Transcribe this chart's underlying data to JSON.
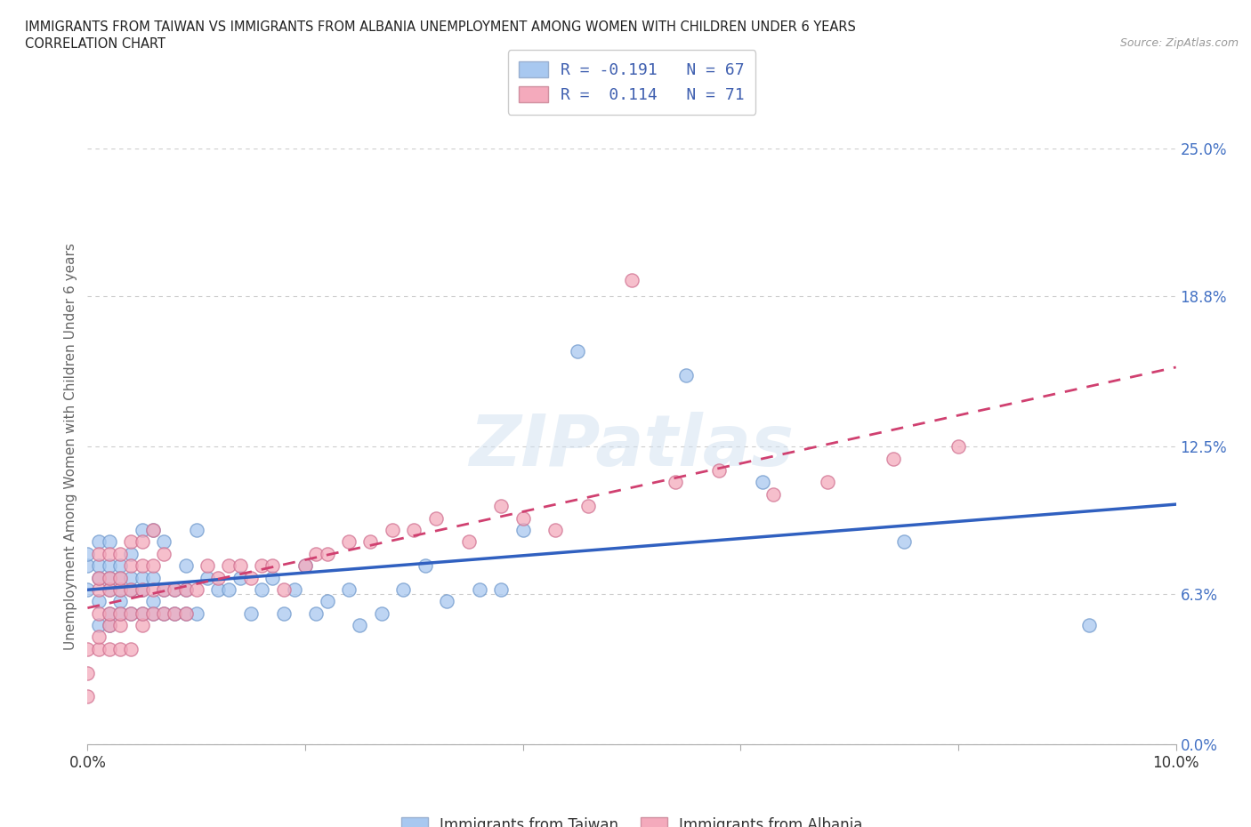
{
  "title_line1": "IMMIGRANTS FROM TAIWAN VS IMMIGRANTS FROM ALBANIA UNEMPLOYMENT AMONG WOMEN WITH CHILDREN UNDER 6 YEARS",
  "title_line2": "CORRELATION CHART",
  "source_text": "Source: ZipAtlas.com",
  "ylabel": "Unemployment Among Women with Children Under 6 years",
  "xlim": [
    0.0,
    0.1
  ],
  "ylim": [
    0.0,
    0.25
  ],
  "x_ticks": [
    0.0,
    0.02,
    0.04,
    0.06,
    0.08,
    0.1
  ],
  "x_tick_labels": [
    "0.0%",
    "",
    "",
    "",
    "",
    "10.0%"
  ],
  "y_tick_labels_right": [
    "0.0%",
    "6.3%",
    "12.5%",
    "18.8%",
    "25.0%"
  ],
  "y_ticks_right": [
    0.0,
    0.063,
    0.125,
    0.188,
    0.25
  ],
  "taiwan_color": "#a8c8f0",
  "albania_color": "#f4aabc",
  "taiwan_line_color": "#3060c0",
  "albania_line_color": "#d04070",
  "R_taiwan": -0.191,
  "N_taiwan": 67,
  "R_albania": 0.114,
  "N_albania": 71,
  "taiwan_x": [
    0.0,
    0.0,
    0.0,
    0.001,
    0.001,
    0.001,
    0.001,
    0.001,
    0.002,
    0.002,
    0.002,
    0.002,
    0.002,
    0.002,
    0.003,
    0.003,
    0.003,
    0.003,
    0.003,
    0.004,
    0.004,
    0.004,
    0.004,
    0.005,
    0.005,
    0.005,
    0.005,
    0.006,
    0.006,
    0.006,
    0.006,
    0.007,
    0.007,
    0.007,
    0.008,
    0.008,
    0.009,
    0.009,
    0.009,
    0.01,
    0.01,
    0.011,
    0.012,
    0.013,
    0.014,
    0.015,
    0.016,
    0.017,
    0.018,
    0.019,
    0.02,
    0.021,
    0.022,
    0.024,
    0.025,
    0.027,
    0.029,
    0.031,
    0.033,
    0.036,
    0.038,
    0.04,
    0.045,
    0.055,
    0.062,
    0.075,
    0.092
  ],
  "taiwan_y": [
    0.065,
    0.075,
    0.08,
    0.05,
    0.06,
    0.07,
    0.075,
    0.085,
    0.05,
    0.055,
    0.065,
    0.07,
    0.075,
    0.085,
    0.055,
    0.06,
    0.065,
    0.07,
    0.075,
    0.055,
    0.065,
    0.07,
    0.08,
    0.055,
    0.065,
    0.07,
    0.09,
    0.055,
    0.06,
    0.07,
    0.09,
    0.055,
    0.065,
    0.085,
    0.055,
    0.065,
    0.055,
    0.065,
    0.075,
    0.055,
    0.09,
    0.07,
    0.065,
    0.065,
    0.07,
    0.055,
    0.065,
    0.07,
    0.055,
    0.065,
    0.075,
    0.055,
    0.06,
    0.065,
    0.05,
    0.055,
    0.065,
    0.075,
    0.06,
    0.065,
    0.065,
    0.09,
    0.165,
    0.155,
    0.11,
    0.085,
    0.05
  ],
  "albania_x": [
    0.0,
    0.0,
    0.0,
    0.001,
    0.001,
    0.001,
    0.001,
    0.001,
    0.001,
    0.002,
    0.002,
    0.002,
    0.002,
    0.002,
    0.002,
    0.003,
    0.003,
    0.003,
    0.003,
    0.003,
    0.003,
    0.004,
    0.004,
    0.004,
    0.004,
    0.004,
    0.005,
    0.005,
    0.005,
    0.005,
    0.005,
    0.006,
    0.006,
    0.006,
    0.006,
    0.007,
    0.007,
    0.007,
    0.008,
    0.008,
    0.009,
    0.009,
    0.01,
    0.011,
    0.012,
    0.013,
    0.014,
    0.015,
    0.016,
    0.017,
    0.018,
    0.02,
    0.021,
    0.022,
    0.024,
    0.026,
    0.028,
    0.03,
    0.032,
    0.035,
    0.038,
    0.04,
    0.043,
    0.046,
    0.05,
    0.054,
    0.058,
    0.063,
    0.068,
    0.074,
    0.08
  ],
  "albania_y": [
    0.02,
    0.03,
    0.04,
    0.04,
    0.045,
    0.055,
    0.065,
    0.07,
    0.08,
    0.04,
    0.05,
    0.055,
    0.065,
    0.07,
    0.08,
    0.04,
    0.05,
    0.055,
    0.065,
    0.07,
    0.08,
    0.04,
    0.055,
    0.065,
    0.075,
    0.085,
    0.05,
    0.055,
    0.065,
    0.075,
    0.085,
    0.055,
    0.065,
    0.075,
    0.09,
    0.055,
    0.065,
    0.08,
    0.055,
    0.065,
    0.055,
    0.065,
    0.065,
    0.075,
    0.07,
    0.075,
    0.075,
    0.07,
    0.075,
    0.075,
    0.065,
    0.075,
    0.08,
    0.08,
    0.085,
    0.085,
    0.09,
    0.09,
    0.095,
    0.085,
    0.1,
    0.095,
    0.09,
    0.1,
    0.195,
    0.11,
    0.115,
    0.105,
    0.11,
    0.12,
    0.125
  ],
  "legend_label_taiwan": "Immigrants from Taiwan",
  "legend_label_albania": "Immigrants from Albania",
  "watermark_text": "ZIPatlas",
  "background_color": "#ffffff",
  "grid_color": "#cccccc",
  "title_color": "#333333",
  "label_color": "#666666"
}
